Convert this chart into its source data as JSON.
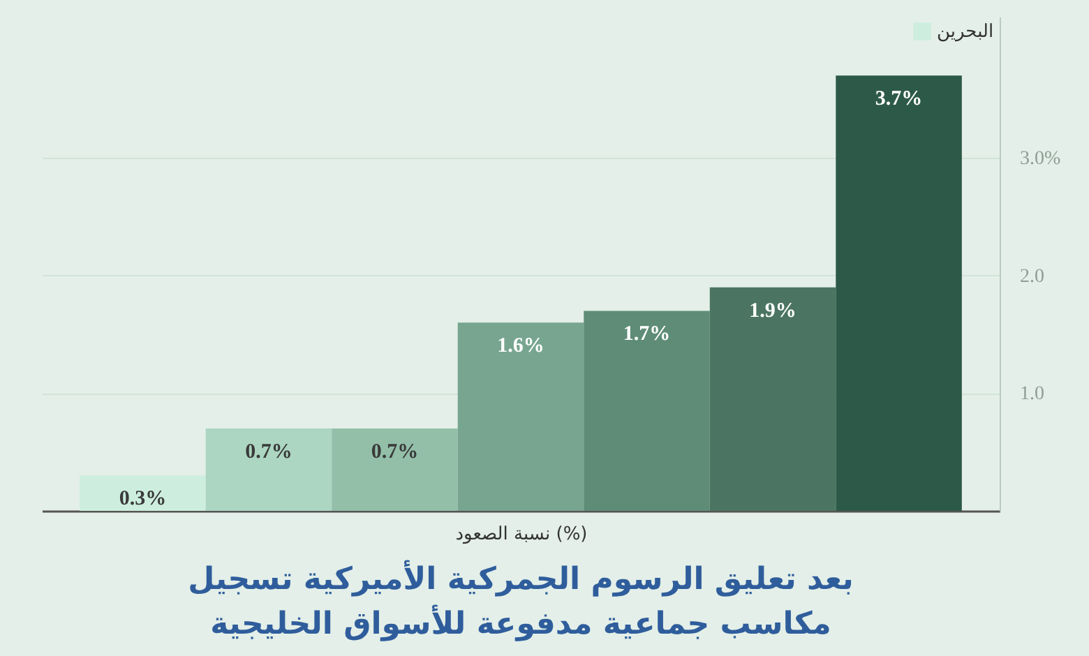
{
  "chart_data": {
    "type": "bar",
    "title": "بعد تعليق الرسوم الجمركية الأميركية تسجيل\nمكاسب جماعية مدفوعة للأسواق الخليجية",
    "xlabel": "نسبة الصعود (%)",
    "stacked": true,
    "categories": [
      null,
      null,
      null,
      null,
      null,
      null,
      null
    ],
    "series": [
      {
        "name": "البحرين",
        "color": "#cdeedf",
        "values": [
          0.3,
          null,
          null,
          null,
          null,
          null,
          null
        ],
        "value_labels": [
          "0.3%",
          null,
          null,
          null,
          null,
          null,
          null
        ]
      },
      {
        "color": "#acd6c2",
        "values": [
          null,
          0.7,
          null,
          null,
          null,
          null,
          null
        ],
        "value_labels": [
          null,
          "0.7%",
          null,
          null,
          null,
          null,
          null
        ]
      },
      {
        "color": "#93bfa9",
        "values": [
          null,
          null,
          0.7,
          null,
          null,
          null,
          null
        ],
        "value_labels": [
          null,
          null,
          "0.7%",
          null,
          null,
          null,
          null
        ]
      },
      {
        "color": "#77a590",
        "values": [
          null,
          null,
          null,
          1.6,
          null,
          null,
          null
        ],
        "value_labels": [
          null,
          null,
          null,
          "1.6%",
          null,
          null,
          null
        ]
      },
      {
        "color": "#5e8c77",
        "values": [
          null,
          null,
          null,
          null,
          1.7,
          null,
          null
        ],
        "value_labels": [
          null,
          null,
          null,
          null,
          "1.7%",
          null,
          null
        ]
      },
      {
        "color": "#4b7562",
        "values": [
          null,
          null,
          null,
          null,
          null,
          1.9,
          null
        ],
        "value_labels": [
          null,
          null,
          null,
          null,
          null,
          "1.9%",
          null
        ]
      },
      {
        "color": "#2d5a48",
        "values": [
          null,
          null,
          null,
          null,
          null,
          null,
          3.7
        ],
        "value_labels": [
          null,
          null,
          null,
          null,
          null,
          null,
          "3.7%"
        ]
      }
    ],
    "ylim": [
      0,
      4.2
    ],
    "yticks": [
      {
        "value": 1,
        "label": "1.0"
      },
      {
        "value": 2,
        "label": "2.0"
      },
      {
        "value": 3,
        "label": "3.0%"
      }
    ],
    "grid": "y",
    "legend": "top right",
    "tick_labels": "y"
  }
}
